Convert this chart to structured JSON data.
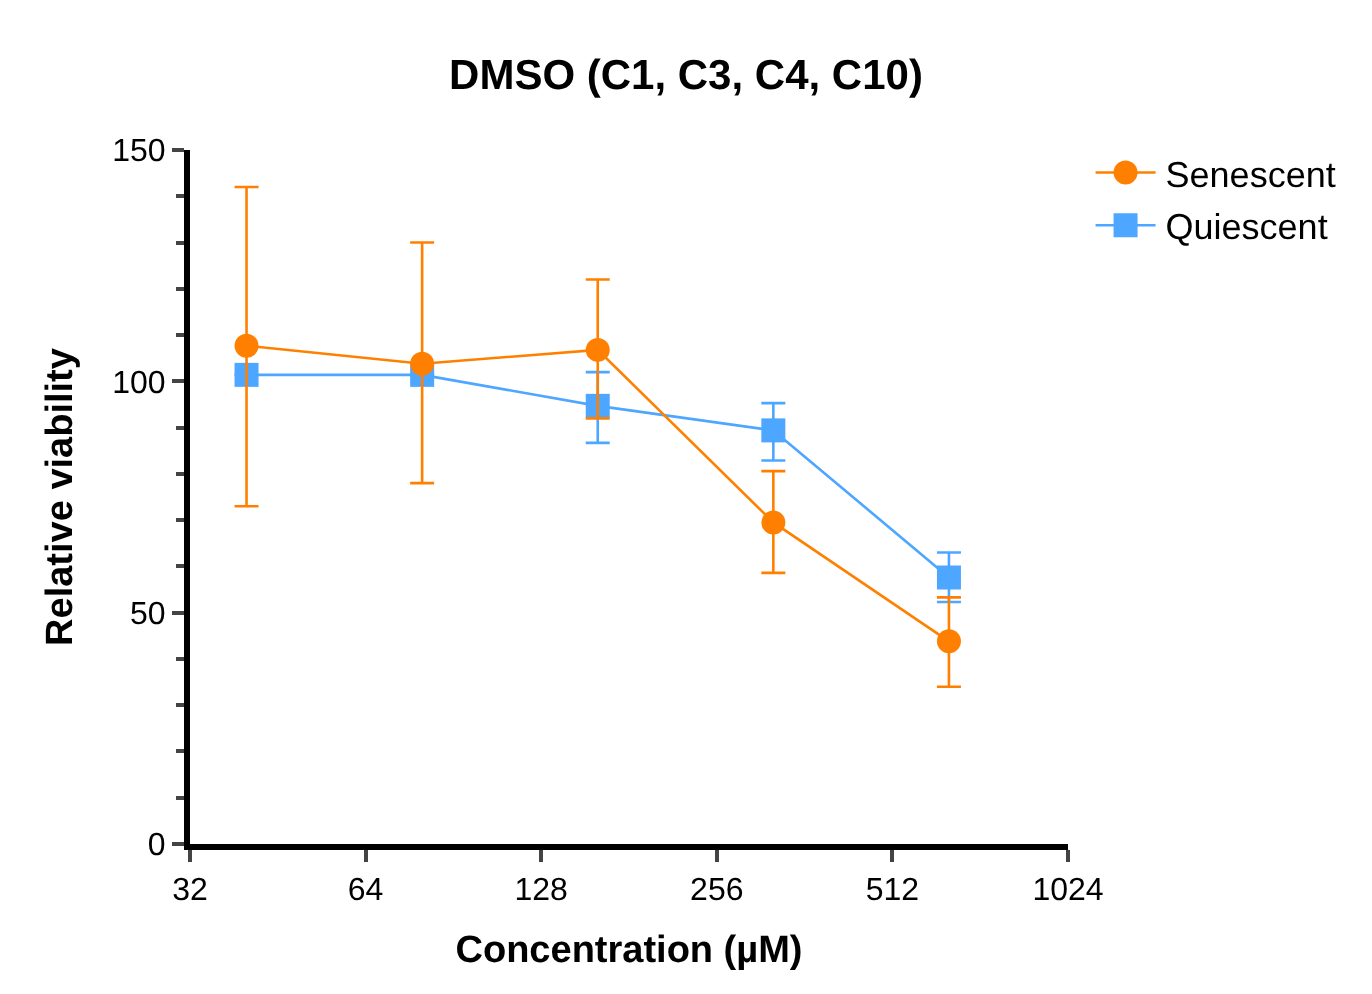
{
  "chart_data": {
    "type": "line",
    "title": "DMSO (C1, C3, C4, C10)",
    "xlabel": "Concentration (µM)",
    "ylabel": "Relative viability",
    "log": "x",
    "x": [
      40,
      80,
      160,
      320,
      640
    ],
    "xlim": [
      32,
      1024
    ],
    "xticks": [
      32,
      64,
      128,
      256,
      512,
      1024
    ],
    "ylim": [
      0,
      150
    ],
    "yticks": [
      0,
      50,
      100,
      150
    ],
    "legend": "top right",
    "line_style": "solid",
    "series": [
      {
        "name": "Senescent",
        "color": "#ff8000",
        "marker": "circle",
        "values": [
          107.7,
          103.8,
          106.8,
          69.5,
          43.8
        ],
        "errors": [
          [
            73,
            142
          ],
          [
            78,
            130
          ],
          [
            92,
            122
          ],
          [
            58.6,
            80.6
          ],
          [
            34,
            53.3
          ]
        ]
      },
      {
        "name": "Quiescent",
        "color": "#4da6ff",
        "marker": "square",
        "values": [
          101.4,
          101.4,
          94.7,
          89.4,
          57.6
        ],
        "errors": [
          null,
          null,
          [
            86.7,
            102
          ],
          [
            82.9,
            95.3
          ],
          [
            52.3,
            63
          ]
        ]
      }
    ]
  }
}
